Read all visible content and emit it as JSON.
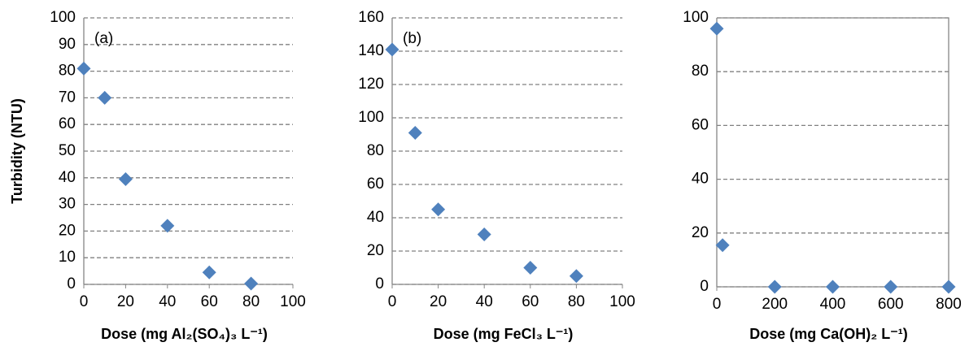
{
  "chart_data": [
    {
      "type": "scatter",
      "ylabel": "Turbidity (NTU)",
      "xlabel": "Dose (mg Al₂(SO₄)₃ L⁻¹)",
      "annotation": "(a)",
      "x": [
        0,
        10,
        20,
        40,
        60,
        80
      ],
      "values": [
        81,
        70,
        39.5,
        22,
        4.5,
        0.3
      ],
      "color": "#4f81bd",
      "xlim": [
        0,
        100
      ],
      "ylim": [
        0,
        100
      ],
      "xticks": [
        0,
        20,
        40,
        60,
        80,
        100
      ],
      "yticks": [
        0,
        10,
        20,
        30,
        40,
        50,
        60,
        70,
        80,
        90,
        100
      ],
      "grid": true,
      "frame": false
    },
    {
      "type": "scatter",
      "xlabel": "Dose (mg FeCl₃ L⁻¹)",
      "annotation": "(b)",
      "x": [
        0,
        10,
        20,
        40,
        60,
        80
      ],
      "values": [
        141,
        91,
        45,
        30,
        10,
        5
      ],
      "color": "#4f81bd",
      "xlim": [
        0,
        100
      ],
      "ylim": [
        0,
        160
      ],
      "xticks": [
        0,
        20,
        40,
        60,
        80,
        100
      ],
      "yticks": [
        0,
        20,
        40,
        60,
        80,
        100,
        120,
        140,
        160
      ],
      "grid": true,
      "frame": false
    },
    {
      "type": "scatter",
      "xlabel": "Dose (mg Ca(OH)₂ L⁻¹)",
      "x": [
        0,
        20,
        200,
        400,
        600,
        800
      ],
      "values": [
        96,
        15.5,
        0,
        0,
        0,
        0
      ],
      "color": "#4f81bd",
      "xlim": [
        0,
        800
      ],
      "ylim": [
        0,
        100
      ],
      "xticks": [
        0,
        200,
        400,
        600,
        800
      ],
      "yticks": [
        0,
        20,
        40,
        60,
        80,
        100
      ],
      "grid": true,
      "frame": true
    }
  ]
}
